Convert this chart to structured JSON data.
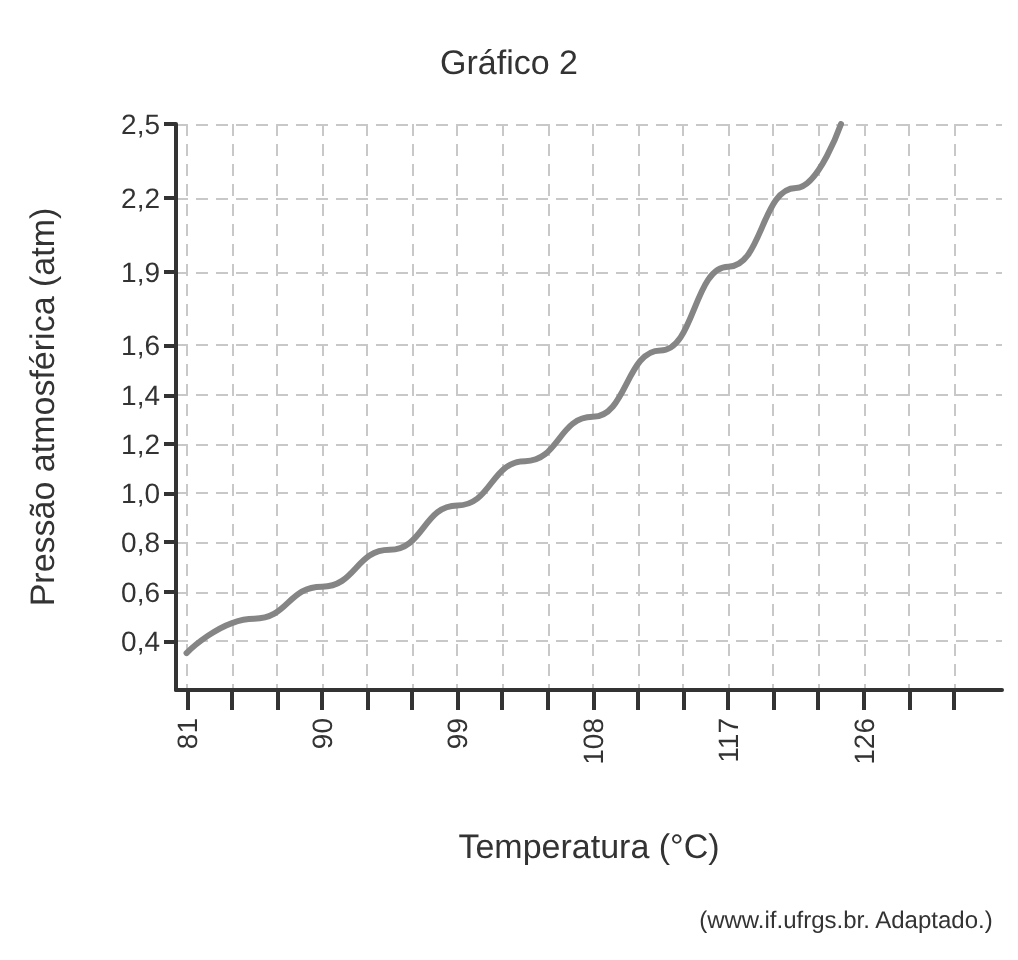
{
  "chart_data": {
    "type": "line",
    "title": "Gráfico 2",
    "xlabel": "Temperatura (°C)",
    "ylabel": "Pressão atmosférica (atm)",
    "annotations": [
      "(www.if.ufrgs.br. Adaptado.)"
    ],
    "x": [
      81,
      85.5,
      90,
      94.5,
      99,
      103.5,
      108,
      112.5,
      117,
      121.5,
      124.5
    ],
    "series": [
      {
        "color": "#858585",
        "values": [
          0.35,
          0.49,
          0.62,
          0.77,
          0.95,
          1.13,
          1.31,
          1.58,
          1.92,
          2.24,
          2.5
        ]
      }
    ],
    "xlim": [
      80.3,
      135.2
    ],
    "xticks": [
      81,
      {
        "value": 84,
        "label": null
      },
      {
        "value": 87,
        "label": null
      },
      90,
      {
        "value": 93,
        "label": null
      },
      {
        "value": 96,
        "label": null
      },
      99,
      {
        "value": 102,
        "label": null
      },
      {
        "value": 105,
        "label": null
      },
      108,
      {
        "value": 111,
        "label": null
      },
      {
        "value": 114,
        "label": null
      },
      117,
      {
        "value": 120,
        "label": null
      },
      {
        "value": 123,
        "label": null
      },
      126,
      {
        "value": 129,
        "label": null
      },
      {
        "value": 132,
        "label": null
      }
    ],
    "ylim": [
      0.2,
      2.5
    ],
    "yticks": [
      {
        "value": 0.4,
        "label": "0,4"
      },
      {
        "value": 0.6,
        "label": "0,6"
      },
      {
        "value": 0.8,
        "label": "0,8"
      },
      {
        "value": 1.0,
        "label": "1,0"
      },
      {
        "value": 1.2,
        "label": "1,2"
      },
      {
        "value": 1.4,
        "label": "1,4"
      },
      {
        "value": 1.6,
        "label": "1,6"
      },
      {
        "value": 1.9,
        "label": "1,9"
      },
      {
        "value": 2.2,
        "label": "2,2"
      },
      {
        "value": 2.5,
        "label": "2,5"
      }
    ],
    "grid": true,
    "marker": "none",
    "line_style": "solid"
  }
}
